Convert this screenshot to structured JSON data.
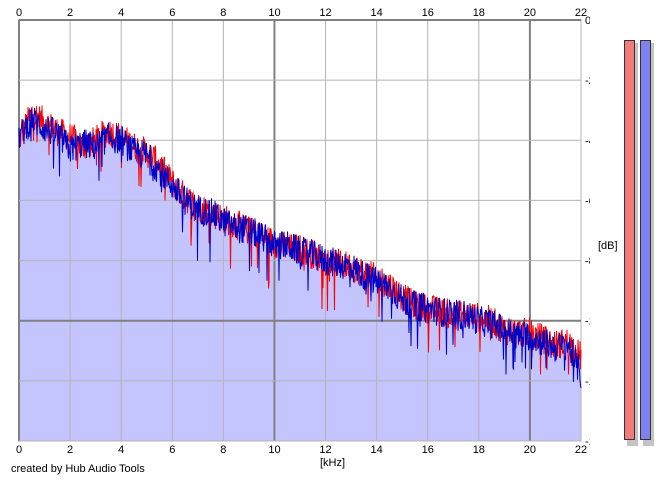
{
  "footer": {
    "credit": "created by Hub Audio Tools"
  },
  "axes": {
    "x_unit": "[kHz]",
    "y_unit": "[dB]",
    "x_ticks": [
      "0",
      "2",
      "4",
      "6",
      "8",
      "10",
      "12",
      "14",
      "16",
      "18",
      "20",
      "22"
    ],
    "y_ticks": [
      "0",
      "-20",
      "-40",
      "-60",
      "-80",
      "-100",
      "-120",
      "-140"
    ]
  },
  "meters": {
    "left_color": "#f27a7a",
    "right_color": "#8080ee"
  },
  "colors": {
    "fill": "#c4c4ff",
    "channel_left": "#ff0000",
    "channel_right": "#0000c8",
    "grid": "#b4b4b4",
    "grid_major": "#808080"
  },
  "chart_data": {
    "type": "area",
    "title": "",
    "xlabel": "[kHz]",
    "ylabel": "[dB]",
    "xlim": [
      0,
      22
    ],
    "ylim": [
      -140,
      0
    ],
    "grid": true,
    "legend": "none",
    "x_ticks": [
      0,
      2,
      4,
      6,
      8,
      10,
      12,
      14,
      16,
      18,
      20,
      22
    ],
    "y_ticks": [
      0,
      -20,
      -40,
      -60,
      -80,
      -100,
      -120,
      -140
    ],
    "x": [
      0,
      0.5,
      1,
      1.5,
      2,
      2.5,
      3,
      3.5,
      4,
      4.5,
      5,
      5.5,
      6,
      6.5,
      7,
      7.5,
      8,
      8.5,
      9,
      9.5,
      10,
      10.5,
      11,
      11.5,
      12,
      12.5,
      13,
      13.5,
      14,
      14.5,
      15,
      15.5,
      16,
      16.5,
      17,
      17.5,
      18,
      18.5,
      19,
      19.5,
      20,
      20.5,
      21,
      21.5,
      22
    ],
    "series": [
      {
        "name": "",
        "color": "#ff0000",
        "values": [
          -40,
          -31,
          -34,
          -37,
          -39,
          -42,
          -40,
          -37,
          -39,
          -42,
          -44,
          -48,
          -54,
          -59,
          -62,
          -64,
          -66,
          -68,
          -70,
          -72,
          -74,
          -76,
          -76,
          -78,
          -80,
          -81,
          -82,
          -84,
          -86,
          -88,
          -92,
          -95,
          -96,
          -97,
          -98,
          -98,
          -99,
          -100,
          -103,
          -104,
          -104,
          -106,
          -108,
          -107,
          -112
        ]
      },
      {
        "name": "",
        "color": "#0000c8",
        "values": [
          -39,
          -33,
          -36,
          -38,
          -43,
          -41,
          -42,
          -39,
          -40,
          -44,
          -45,
          -50,
          -55,
          -60,
          -63,
          -64,
          -67,
          -69,
          -70,
          -72,
          -75,
          -75,
          -77,
          -78,
          -80,
          -81,
          -82,
          -85,
          -87,
          -89,
          -93,
          -95,
          -96,
          -97,
          -98,
          -98,
          -100,
          -101,
          -103,
          -105,
          -105,
          -107,
          -109,
          -108,
          -118
        ]
      }
    ]
  }
}
